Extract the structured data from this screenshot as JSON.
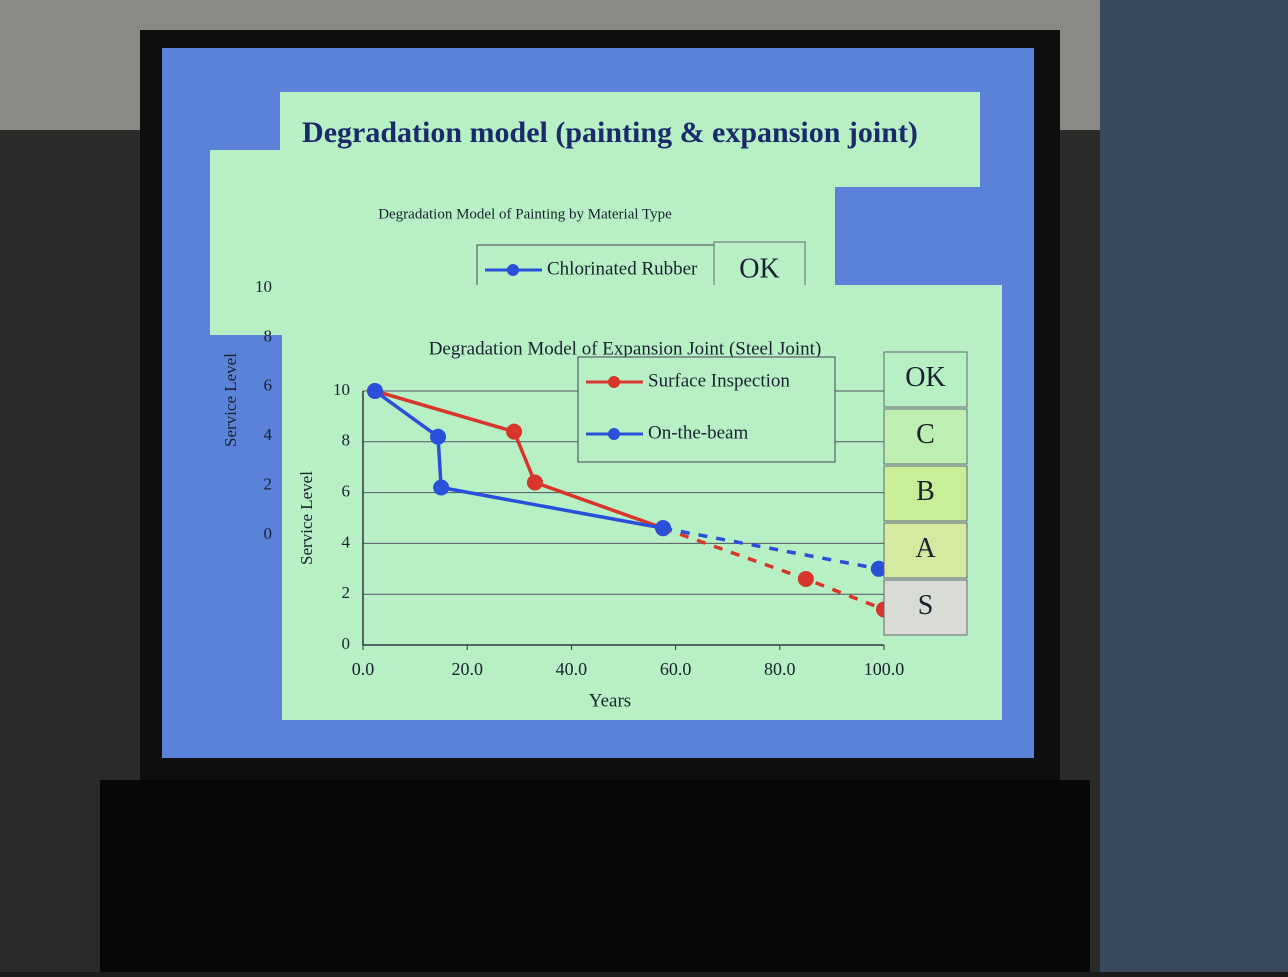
{
  "slide": {
    "title": "Degradation model (painting & expansion joint)"
  },
  "chart_data": [
    {
      "type": "line",
      "title": "Degradation Model of Painting by Material Type",
      "ylabel": "Service Level",
      "ylim": [
        0,
        10
      ],
      "yticks": [
        10,
        8,
        6,
        4,
        2,
        0
      ],
      "series": [
        {
          "name": "Chlorinated Rubber",
          "color": "#2a4fd8",
          "x": [],
          "values": []
        }
      ],
      "grades": [
        {
          "label": "OK",
          "color": "#b6f0c4"
        }
      ]
    },
    {
      "type": "line",
      "title": "Degradation Model of Expansion Joint (Steel Joint)",
      "xlabel": "Years",
      "ylabel": "Service Level",
      "grid": true,
      "xlim": [
        0,
        100
      ],
      "xticks": [
        {
          "value": 0,
          "label": "0.0"
        },
        {
          "value": 20,
          "label": "20.0"
        },
        {
          "value": 40,
          "label": "40.0"
        },
        {
          "value": 60,
          "label": "60.0"
        },
        {
          "value": 80,
          "label": "80.0"
        },
        {
          "value": 100,
          "label": "100.0"
        }
      ],
      "ylim": [
        0,
        10
      ],
      "yticks": [
        0,
        2,
        4,
        6,
        8,
        10
      ],
      "series": [
        {
          "name": "Surface Inspection",
          "color": "#d8362a",
          "dashed_from": 3,
          "x": [
            2.3,
            29,
            33,
            57.6,
            85,
            100
          ],
          "values": [
            10,
            8.4,
            6.4,
            4.6,
            2.6,
            1.4
          ]
        },
        {
          "name": "On-the-beam",
          "color": "#2a4fd8",
          "dashed_from": 3,
          "x": [
            2.3,
            14.4,
            15,
            57.6,
            99
          ],
          "values": [
            10,
            8.2,
            6.2,
            4.6,
            3.0
          ]
        }
      ],
      "grades": [
        {
          "label": "OK",
          "color": "#b6f0c4"
        },
        {
          "label": "C",
          "color": "#bdf0b0"
        },
        {
          "label": "B",
          "color": "#c8ee98"
        },
        {
          "label": "A",
          "color": "#d4eaa0"
        },
        {
          "label": "S",
          "color": "#d8dcd4"
        }
      ]
    }
  ]
}
